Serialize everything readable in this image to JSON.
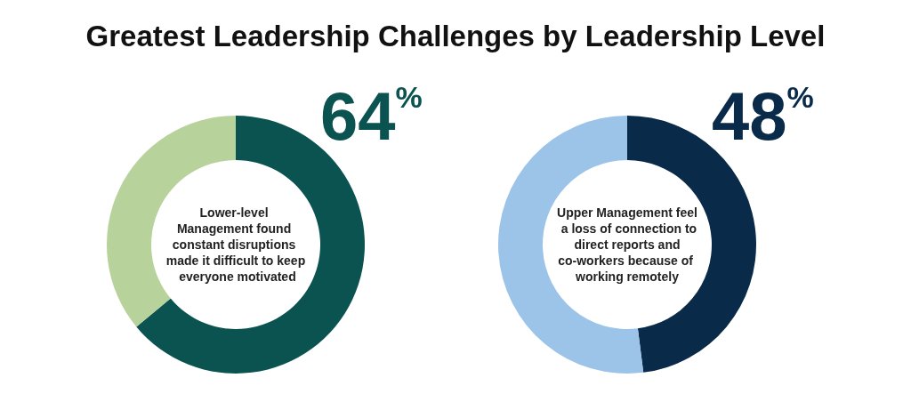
{
  "chart_data": [
    {
      "type": "donut",
      "title": "Greatest Leadership Challenges by Leadership Level",
      "categories": [
        null,
        null
      ],
      "values": [
        64,
        36
      ],
      "colors": [
        "#0b5350",
        "#b8d29b"
      ],
      "value_labels": [
        "64%",
        null
      ],
      "annotations": [
        "Lower-level Management found constant disruptions made it difficult to keep everyone motivated"
      ]
    },
    {
      "type": "donut",
      "categories": [
        null,
        null
      ],
      "values": [
        48,
        52
      ],
      "colors": [
        "#0a2a4a",
        "#9cc3e8"
      ],
      "value_labels": [
        "48%",
        null
      ],
      "annotations": [
        "Upper Management feel a loss of connection to direct reports and co-workers because of working remotely"
      ]
    }
  ]
}
